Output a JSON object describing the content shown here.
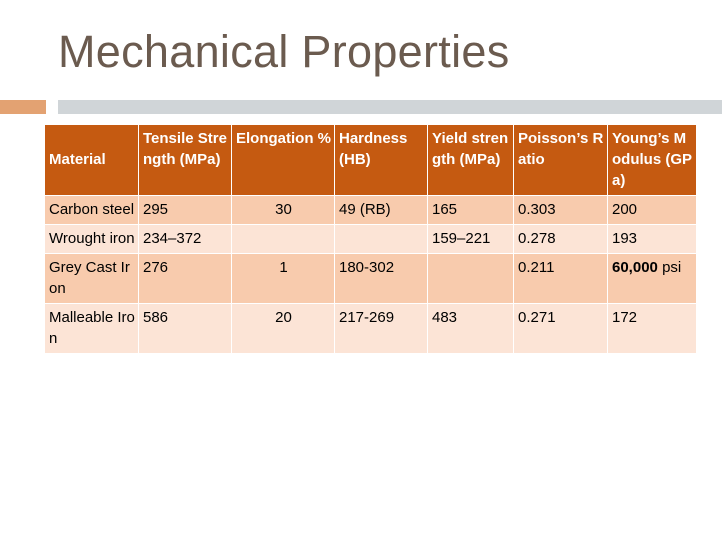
{
  "slide": {
    "title": "Mechanical Properties",
    "accent_color": "#e3a272",
    "rule_color": "#d0d5d8"
  },
  "table": {
    "header_color": "#c55a11",
    "row_color_odd": "#f8cbad",
    "row_color_even": "#fce4d6",
    "headers": [
      "Material",
      "Tensile Strength (MPa)",
      "Elongation %",
      "Hardness (HB)",
      "Yield strength (MPa)",
      "Poisson’s Ratio",
      "Young’s Modulus (GPa)"
    ],
    "rows": [
      [
        "Carbon steel",
        "295",
        "30",
        "49 (RB)",
        "165",
        "0.303",
        "200"
      ],
      [
        "Wrought iron",
        "234–372",
        "",
        "",
        "159–221",
        "0.278",
        "193"
      ],
      [
        "Grey Cast Iron",
        "276",
        "1",
        "180-302",
        "",
        "0.211",
        "60,000 psi"
      ],
      [
        "Malleable Iron",
        "586",
        "20",
        "217-269",
        "483",
        "0.271",
        "172"
      ]
    ],
    "grey_iron_modulus_value": "60,000",
    "grey_iron_modulus_unit": "psi"
  }
}
